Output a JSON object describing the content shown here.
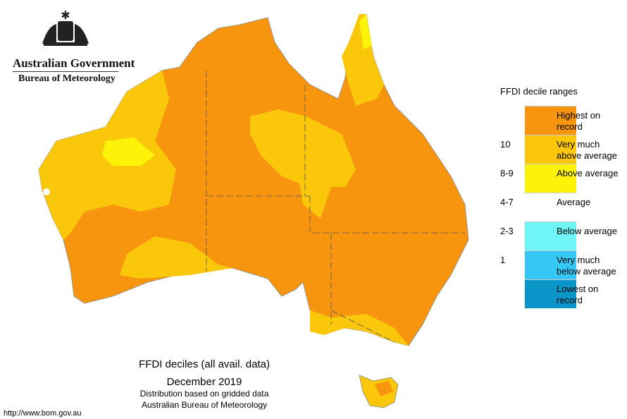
{
  "header": {
    "title": "Australian Government",
    "subtitle": "Bureau of Meteorology"
  },
  "legend": {
    "title": "FFDI decile ranges",
    "items": [
      {
        "label": "Highest on record",
        "color": "#f7950f"
      },
      {
        "label": "Very much above average",
        "color": "#fbc70a"
      },
      {
        "label": "Above average",
        "color": "#fcf309"
      },
      {
        "label": "Average",
        "color": "#ffffff"
      },
      {
        "label": "Below average",
        "color": "#6ff5f7"
      },
      {
        "label": "Very much below average",
        "color": "#35c8f7"
      },
      {
        "label": "Lowest on record",
        "color": "#0a95c9"
      }
    ],
    "ticks": [
      "10",
      "8-9",
      "4-7",
      "2-3",
      "1"
    ]
  },
  "caption": {
    "lines": [
      "FFDI deciles (all avail. data)",
      "December 2019",
      "Distribution based on gridded data",
      "Australian Bureau of Meteorology"
    ]
  },
  "footer": {
    "url": "http://www.bom.gov.au"
  }
}
